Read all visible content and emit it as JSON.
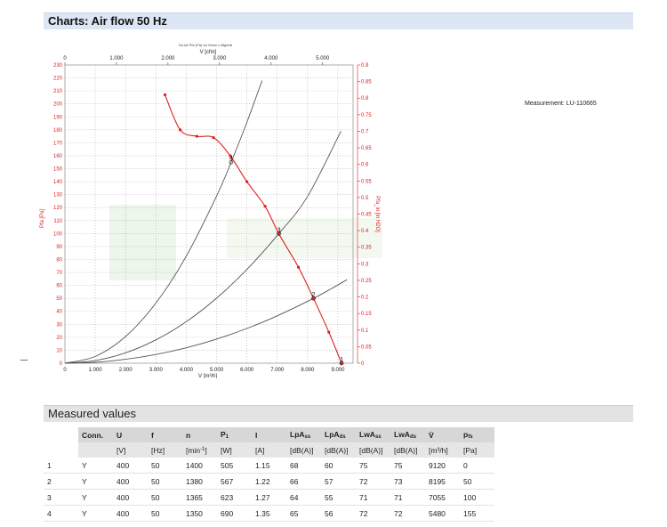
{
  "header": {
    "title": "Charts: Air flow 50 Hz"
  },
  "measurement": "Measurement: LU-110665",
  "section": {
    "title": "Measured values"
  },
  "chart_data": {
    "type": "line",
    "subtitle": "Druck Pfa (Pa) for Moon Luftgebä",
    "top_axis": {
      "label": "V [cfm]",
      "ticks": [
        0,
        1000,
        2000,
        3000,
        4000,
        5000
      ],
      "tick_labels": [
        "0",
        "1.000",
        "2.000",
        "3.000",
        "4.000",
        "5.000"
      ]
    },
    "x_axis": {
      "label": "V [m³/h]",
      "range": [
        0,
        9500
      ],
      "ticks": [
        0,
        1000,
        2000,
        3000,
        4000,
        5000,
        6000,
        7000,
        8000,
        9000
      ],
      "tick_labels": [
        "0",
        "1.000",
        "2.000",
        "3.000",
        "4.000",
        "5.000",
        "6.000",
        "7.000",
        "8.000",
        "9.000"
      ]
    },
    "y_left": {
      "label": "Pfa [Pa]",
      "range": [
        0,
        230
      ],
      "ticks": [
        0,
        10,
        20,
        30,
        40,
        50,
        60,
        70,
        80,
        90,
        100,
        110,
        120,
        130,
        140,
        150,
        160,
        170,
        180,
        190,
        200,
        210,
        220,
        230
      ]
    },
    "y_right": {
      "label": "Pfa_in [in H2O]",
      "range": [
        0,
        0.9
      ],
      "ticks": [
        0,
        0.05,
        0.1,
        0.15,
        0.2,
        0.25,
        0.3,
        0.35,
        0.4,
        0.45,
        0.5,
        0.55,
        0.6,
        0.65,
        0.7,
        0.75,
        0.8,
        0.85,
        0.9
      ],
      "tick_labels": [
        "0",
        "0.05",
        "0.1",
        "0.15",
        "0.2",
        "0.25",
        "0.3",
        "0.35",
        "0.4",
        "0.45",
        "0.5",
        "0.55",
        "0.6",
        "0.65",
        "0.7",
        "0.75",
        "0.8",
        "0.85",
        "0.9"
      ]
    },
    "grid": true,
    "series": [
      {
        "name": "Pfa",
        "color": "#e02020",
        "x": [
          3300,
          3800,
          4350,
          4900,
          5450,
          6000,
          6600,
          7050,
          7700,
          8195,
          8700,
          9120
        ],
        "y": [
          207,
          180,
          175,
          174,
          160,
          140,
          121,
          100,
          74,
          50,
          24,
          0
        ]
      }
    ],
    "system_curves": [
      {
        "label": "4",
        "color": "#555555",
        "x": [
          0,
          1000,
          2000,
          3000,
          4000,
          5000,
          5480,
          6000,
          6500
        ],
        "y": [
          0,
          5.2,
          20.6,
          46.4,
          82.5,
          128.9,
          155,
          185.8,
          218
        ]
      },
      {
        "label": "3",
        "color": "#555555",
        "x": [
          0,
          1000,
          2000,
          3000,
          4000,
          5000,
          6000,
          7055,
          8000,
          9100
        ],
        "y": [
          0,
          2,
          8,
          18,
          32,
          50.2,
          72.3,
          100,
          128.6,
          179
        ]
      },
      {
        "label": "2",
        "color": "#555555",
        "x": [
          0,
          1000,
          2000,
          3000,
          4000,
          5000,
          6000,
          7000,
          8195,
          8800,
          9300
        ],
        "y": [
          0,
          0.7,
          3,
          6.7,
          11.9,
          18.6,
          26.8,
          36.5,
          50,
          57.7,
          64.4
        ]
      }
    ],
    "points": [
      {
        "label": "4",
        "x": 5480,
        "y": 155
      },
      {
        "label": "3",
        "x": 7055,
        "y": 100
      },
      {
        "label": "2",
        "x": 8195,
        "y": 50
      },
      {
        "label": "1",
        "x": 9120,
        "y": 0
      }
    ]
  },
  "table": {
    "headers": [
      "",
      "Conn.",
      "U",
      "f",
      "n",
      "P1",
      "I",
      "LpAss",
      "LpAds",
      "LwAss",
      "LwAds",
      "V̇",
      "pfs"
    ],
    "units": [
      "",
      "",
      "[V]",
      "[Hz]",
      "[min-1]",
      "[W]",
      "[A]",
      "[dB(A)]",
      "[dB(A)]",
      "[dB(A)]",
      "[dB(A)]",
      "[m³/h]",
      "[Pa]"
    ],
    "rows": [
      [
        "1",
        "Y",
        "400",
        "50",
        "1400",
        "505",
        "1.15",
        "68",
        "60",
        "75",
        "75",
        "9120",
        "0"
      ],
      [
        "2",
        "Y",
        "400",
        "50",
        "1380",
        "567",
        "1.22",
        "66",
        "57",
        "72",
        "73",
        "8195",
        "50"
      ],
      [
        "3",
        "Y",
        "400",
        "50",
        "1365",
        "623",
        "1.27",
        "64",
        "55",
        "71",
        "71",
        "7055",
        "100"
      ],
      [
        "4",
        "Y",
        "400",
        "50",
        "1350",
        "690",
        "1.35",
        "65",
        "56",
        "72",
        "72",
        "5480",
        "155"
      ]
    ]
  }
}
